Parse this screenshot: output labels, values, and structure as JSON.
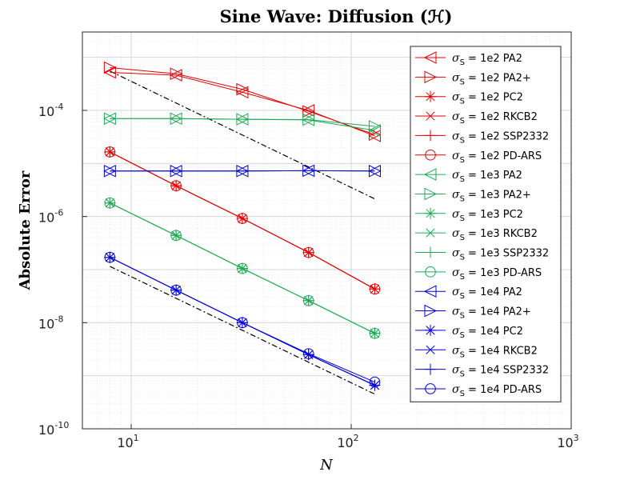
{
  "chart_data": {
    "type": "line",
    "title": "Sine Wave: Diffusion (ℋ)",
    "xlabel": "N",
    "ylabel": "Absolute Error",
    "xscale": "log",
    "yscale": "log",
    "xlim": [
      6,
      1000
    ],
    "ylim": [
      1e-10,
      0.003
    ],
    "grid": true,
    "legend_position": "top-right",
    "x_ticks": [
      {
        "value": 10,
        "base": "10",
        "exp": "1"
      },
      {
        "value": 100,
        "base": "10",
        "exp": "2"
      },
      {
        "value": 1000,
        "base": "10",
        "exp": "3"
      }
    ],
    "y_ticks": [
      {
        "value": 1e-10,
        "base": "10",
        "exp": "-10"
      },
      {
        "value": 1e-08,
        "base": "10",
        "exp": "-8"
      },
      {
        "value": 1e-06,
        "base": "10",
        "exp": "-6"
      },
      {
        "value": 0.0001,
        "base": "10",
        "exp": "-4"
      }
    ],
    "x": [
      8,
      16,
      32,
      64,
      128
    ],
    "reference_lines": [
      {
        "name": "slope-2-reference-upper",
        "color": "#000000",
        "style": "dashdot",
        "x": [
          8,
          128
        ],
        "y": [
          0.00055,
          2.15e-06
        ]
      },
      {
        "name": "slope-2-reference-lower",
        "color": "#000000",
        "style": "dashdot",
        "x": [
          8,
          128
        ],
        "y": [
          1.15e-07,
          4.5e-10
        ]
      }
    ],
    "series": [
      {
        "sigma": "σ",
        "sub": "S",
        "label": " = 1e2  PA2",
        "color": "#e60000",
        "marker": "tri-left",
        "values": [
          0.00052,
          0.00046,
          0.00022,
          0.0001,
          3.3e-05
        ]
      },
      {
        "sigma": "σ",
        "sub": "S",
        "label": " = 1e2  PA2+",
        "color": "#e60000",
        "marker": "tri-right",
        "values": [
          0.00064,
          0.00049,
          0.00025,
          9.6e-05,
          3.5e-05
        ]
      },
      {
        "sigma": "σ",
        "sub": "S",
        "label": " = 1e2  PC2",
        "color": "#e60000",
        "marker": "asterisk",
        "values": [
          1.65e-05,
          3.8e-06,
          9.2e-07,
          2.1e-07,
          4.3e-08
        ]
      },
      {
        "sigma": "σ",
        "sub": "S",
        "label": " = 1e2  RKCB2",
        "color": "#e60000",
        "marker": "x",
        "values": [
          1.65e-05,
          3.8e-06,
          9.2e-07,
          2.1e-07,
          4.3e-08
        ]
      },
      {
        "sigma": "σ",
        "sub": "S",
        "label": " = 1e2  SSP2332",
        "color": "#e60000",
        "marker": "plus",
        "values": [
          1.65e-05,
          3.8e-06,
          9.2e-07,
          2.1e-07,
          4.3e-08
        ]
      },
      {
        "sigma": "σ",
        "sub": "S",
        "label": " = 1e2  PD-ARS",
        "color": "#e60000",
        "marker": "circle",
        "values": [
          1.65e-05,
          3.8e-06,
          9.2e-07,
          2.1e-07,
          4.3e-08
        ]
      },
      {
        "sigma": "σ",
        "sub": "S",
        "label": " = 1e3  PA2",
        "color": "#1faa55",
        "marker": "tri-left",
        "values": [
          7e-05,
          7e-05,
          6.8e-05,
          6.6e-05,
          4.2e-05
        ]
      },
      {
        "sigma": "σ",
        "sub": "S",
        "label": " = 1e3  PA2+",
        "color": "#1faa55",
        "marker": "tri-right",
        "values": [
          7e-05,
          7e-05,
          6.8e-05,
          6.7e-05,
          5e-05
        ]
      },
      {
        "sigma": "σ",
        "sub": "S",
        "label": " = 1e3  PC2",
        "color": "#1faa55",
        "marker": "asterisk",
        "values": [
          1.8e-06,
          4.4e-07,
          1.05e-07,
          2.6e-08,
          6.3e-09
        ]
      },
      {
        "sigma": "σ",
        "sub": "S",
        "label": " = 1e3  RKCB2",
        "color": "#1faa55",
        "marker": "x",
        "values": [
          1.8e-06,
          4.4e-07,
          1.05e-07,
          2.6e-08,
          6.3e-09
        ]
      },
      {
        "sigma": "σ",
        "sub": "S",
        "label": " = 1e3  SSP2332",
        "color": "#1faa55",
        "marker": "plus",
        "values": [
          1.8e-06,
          4.4e-07,
          1.05e-07,
          2.6e-08,
          6.3e-09
        ]
      },
      {
        "sigma": "σ",
        "sub": "S",
        "label": " = 1e3  PD-ARS",
        "color": "#1faa55",
        "marker": "circle",
        "values": [
          1.8e-06,
          4.4e-07,
          1.05e-07,
          2.6e-08,
          6.3e-09
        ]
      },
      {
        "sigma": "σ",
        "sub": "S",
        "label": " = 1e4  PA2",
        "color": "#0000dd",
        "marker": "tri-left",
        "values": [
          7.2e-06,
          7.2e-06,
          7.2e-06,
          7.3e-06,
          7.2e-06
        ]
      },
      {
        "sigma": "σ",
        "sub": "S",
        "label": " = 1e4  PA2+",
        "color": "#0000dd",
        "marker": "tri-right",
        "values": [
          7.2e-06,
          7.2e-06,
          7.2e-06,
          7.3e-06,
          7.2e-06
        ]
      },
      {
        "sigma": "σ",
        "sub": "S",
        "label": " = 1e4  PC2",
        "color": "#0000dd",
        "marker": "asterisk",
        "values": [
          1.7e-07,
          4.1e-08,
          1e-08,
          2.5e-09,
          6.6e-10
        ]
      },
      {
        "sigma": "σ",
        "sub": "S",
        "label": " = 1e4  RKCB2",
        "color": "#0000dd",
        "marker": "x",
        "values": [
          1.7e-07,
          4.1e-08,
          1e-08,
          2.5e-09,
          6.6e-10
        ]
      },
      {
        "sigma": "σ",
        "sub": "S",
        "label": " = 1e4  SSP2332",
        "color": "#0000dd",
        "marker": "plus",
        "values": [
          1.7e-07,
          4.1e-08,
          1e-08,
          2.5e-09,
          6.6e-10
        ]
      },
      {
        "sigma": "σ",
        "sub": "S",
        "label": " = 1e4  PD-ARS",
        "color": "#0000dd",
        "marker": "circle",
        "values": [
          1.7e-07,
          4.1e-08,
          1e-08,
          2.6e-09,
          7.6e-10
        ]
      }
    ]
  }
}
